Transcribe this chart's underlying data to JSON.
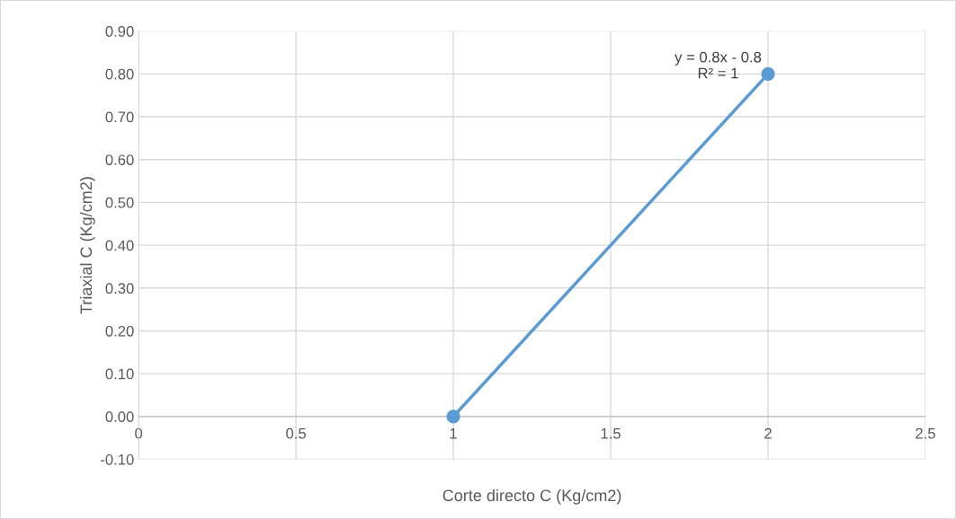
{
  "chart_data": {
    "type": "line",
    "xlabel": "Corte directo C (Kg/cm2)",
    "ylabel": "Triaxial C (Kg/cm2)",
    "x": [
      1,
      2
    ],
    "series": [
      {
        "color": "#5b9bd5",
        "values": [
          0,
          0.8
        ]
      }
    ],
    "marker": "circle",
    "xlim": [
      0,
      2.5
    ],
    "xticks": [
      0,
      0.5,
      1,
      1.5,
      2,
      2.5
    ],
    "ylim": [
      -0.1,
      0.9
    ],
    "yticks": [
      {
        "value": -0.1,
        "label": "-0.10"
      },
      {
        "value": 0,
        "label": "0.00"
      },
      {
        "value": 0.1,
        "label": "0.10"
      },
      {
        "value": 0.2,
        "label": "0.20"
      },
      {
        "value": 0.3,
        "label": "0.30"
      },
      {
        "value": 0.4,
        "label": "0.40"
      },
      {
        "value": 0.5,
        "label": "0.50"
      },
      {
        "value": 0.6,
        "label": "0.60"
      },
      {
        "value": 0.7,
        "label": "0.70"
      },
      {
        "value": 0.8,
        "label": "0.80"
      },
      {
        "value": 0.9,
        "label": "0.90"
      }
    ],
    "grid": true,
    "annotations": [
      {
        "text": "y = 0.8x - 0.8\nR² = 1",
        "x": 2,
        "y": 0.8
      }
    ]
  }
}
